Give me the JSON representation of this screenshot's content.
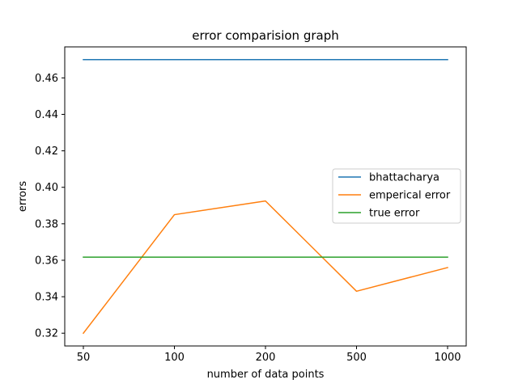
{
  "chart_data": {
    "type": "line",
    "title": "error comparision graph",
    "xlabel": "number of data points",
    "ylabel": "errors",
    "categories": [
      "50",
      "100",
      "200",
      "500",
      "1000"
    ],
    "ylim": [
      0.313,
      0.477
    ],
    "yticks": [
      0.32,
      0.34,
      0.36,
      0.38,
      0.4,
      0.42,
      0.44,
      0.46
    ],
    "grid": false,
    "legend_position": "center-right",
    "series": [
      {
        "name": "bhattacharya",
        "color": "#1f77b4",
        "values": [
          0.47,
          0.47,
          0.47,
          0.47,
          0.47
        ]
      },
      {
        "name": "emperical error",
        "color": "#ff7f0e",
        "values": [
          0.32,
          0.385,
          0.3925,
          0.343,
          0.356
        ]
      },
      {
        "name": "true error",
        "color": "#2ca02c",
        "values": [
          0.3617,
          0.3617,
          0.3617,
          0.3617,
          0.3617
        ]
      }
    ]
  }
}
